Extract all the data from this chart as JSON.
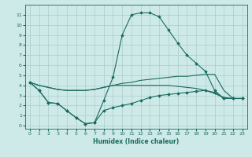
{
  "xlabel": "Humidex (Indice chaleur)",
  "bg_color": "#ceeae8",
  "grid_color": "#aacccc",
  "line_color": "#1a6b60",
  "xlim": [
    -0.5,
    23.5
  ],
  "ylim": [
    -0.3,
    12
  ],
  "xticks": [
    0,
    1,
    2,
    3,
    4,
    5,
    6,
    7,
    8,
    9,
    10,
    11,
    12,
    13,
    14,
    15,
    16,
    17,
    18,
    19,
    20,
    21,
    22,
    23
  ],
  "yticks": [
    0,
    1,
    2,
    3,
    4,
    5,
    6,
    7,
    8,
    9,
    10,
    11
  ],
  "series1_x": [
    0,
    1,
    2,
    3,
    4,
    5,
    6,
    7,
    8,
    9,
    10,
    11,
    12,
    13,
    14,
    15,
    16,
    17,
    18,
    19,
    20,
    21,
    22,
    23
  ],
  "series1_y": [
    4.3,
    3.5,
    2.3,
    2.2,
    1.5,
    0.8,
    0.2,
    0.3,
    2.5,
    4.8,
    9.0,
    11.0,
    11.2,
    11.2,
    10.8,
    9.5,
    8.2,
    7.0,
    6.2,
    5.4,
    3.5,
    2.7,
    2.7,
    2.7
  ],
  "series2_x": [
    0,
    1,
    2,
    3,
    4,
    5,
    6,
    7,
    8,
    9,
    10,
    11,
    12,
    13,
    14,
    15,
    16,
    17,
    18,
    19,
    20,
    21,
    22,
    23
  ],
  "series2_y": [
    4.3,
    4.0,
    3.8,
    3.6,
    3.5,
    3.5,
    3.5,
    3.6,
    3.8,
    4.0,
    4.2,
    4.3,
    4.5,
    4.6,
    4.7,
    4.8,
    4.9,
    4.9,
    5.0,
    5.1,
    5.1,
    3.5,
    2.7,
    2.7
  ],
  "series3_x": [
    0,
    1,
    2,
    3,
    4,
    5,
    6,
    7,
    8,
    9,
    10,
    11,
    12,
    13,
    14,
    15,
    16,
    17,
    18,
    19,
    20,
    21,
    22,
    23
  ],
  "series3_y": [
    4.3,
    3.5,
    2.3,
    2.2,
    1.5,
    0.8,
    0.2,
    0.3,
    1.5,
    1.8,
    2.0,
    2.2,
    2.5,
    2.8,
    3.0,
    3.1,
    3.2,
    3.3,
    3.4,
    3.5,
    3.3,
    2.7,
    2.7,
    2.7
  ],
  "series4_x": [
    0,
    1,
    2,
    3,
    4,
    5,
    6,
    7,
    8,
    9,
    10,
    11,
    12,
    13,
    14,
    15,
    16,
    17,
    18,
    19,
    20,
    21,
    22,
    23
  ],
  "series4_y": [
    4.3,
    4.0,
    3.8,
    3.6,
    3.5,
    3.5,
    3.5,
    3.6,
    3.8,
    4.0,
    4.0,
    4.0,
    4.0,
    4.0,
    4.0,
    4.0,
    3.9,
    3.8,
    3.7,
    3.5,
    3.2,
    2.8,
    2.7,
    2.7
  ]
}
